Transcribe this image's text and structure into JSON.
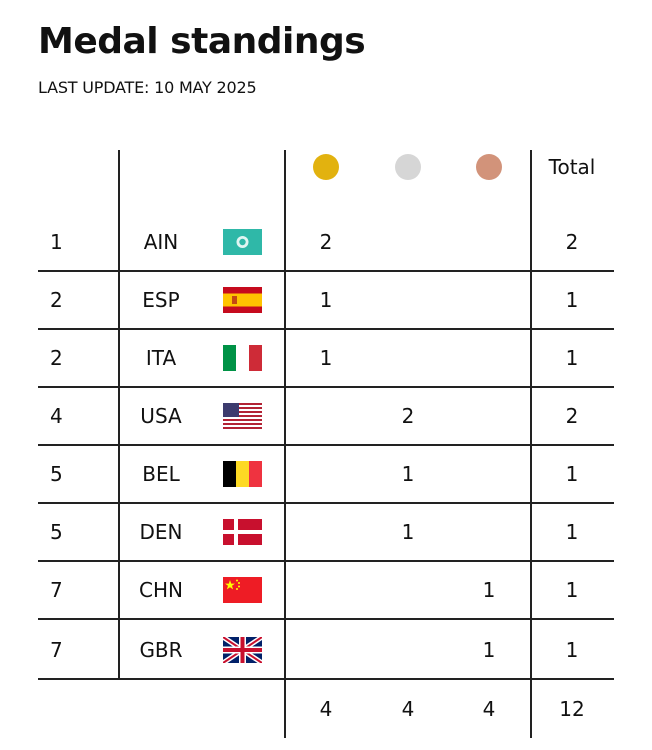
{
  "title": "Medal standings",
  "subtitle": "LAST UPDATE: 10 MAY 2025",
  "header": {
    "gold_color": "#E2B20F",
    "silver_color": "#D6D6D6",
    "bronze_color": "#D2937A",
    "total_label": "Total"
  },
  "rows": [
    {
      "rank": "1",
      "code": "AIN",
      "flag": "ain-flag-icon",
      "gold": "2",
      "silver": "",
      "bronze": "",
      "total": "2"
    },
    {
      "rank": "2",
      "code": "ESP",
      "flag": "spain-flag-icon",
      "gold": "1",
      "silver": "",
      "bronze": "",
      "total": "1"
    },
    {
      "rank": "2",
      "code": "ITA",
      "flag": "italy-flag-icon",
      "gold": "1",
      "silver": "",
      "bronze": "",
      "total": "1"
    },
    {
      "rank": "4",
      "code": "USA",
      "flag": "usa-flag-icon",
      "gold": "",
      "silver": "2",
      "bronze": "",
      "total": "2"
    },
    {
      "rank": "5",
      "code": "BEL",
      "flag": "belgium-flag-icon",
      "gold": "",
      "silver": "1",
      "bronze": "",
      "total": "1"
    },
    {
      "rank": "5",
      "code": "DEN",
      "flag": "denmark-flag-icon",
      "gold": "",
      "silver": "1",
      "bronze": "",
      "total": "1"
    },
    {
      "rank": "7",
      "code": "CHN",
      "flag": "china-flag-icon",
      "gold": "",
      "silver": "",
      "bronze": "1",
      "total": "1"
    },
    {
      "rank": "7",
      "code": "GBR",
      "flag": "uk-flag-icon",
      "gold": "",
      "silver": "",
      "bronze": "1",
      "total": "1"
    }
  ],
  "totals": {
    "gold": "4",
    "silver": "4",
    "bronze": "4",
    "total": "12"
  }
}
